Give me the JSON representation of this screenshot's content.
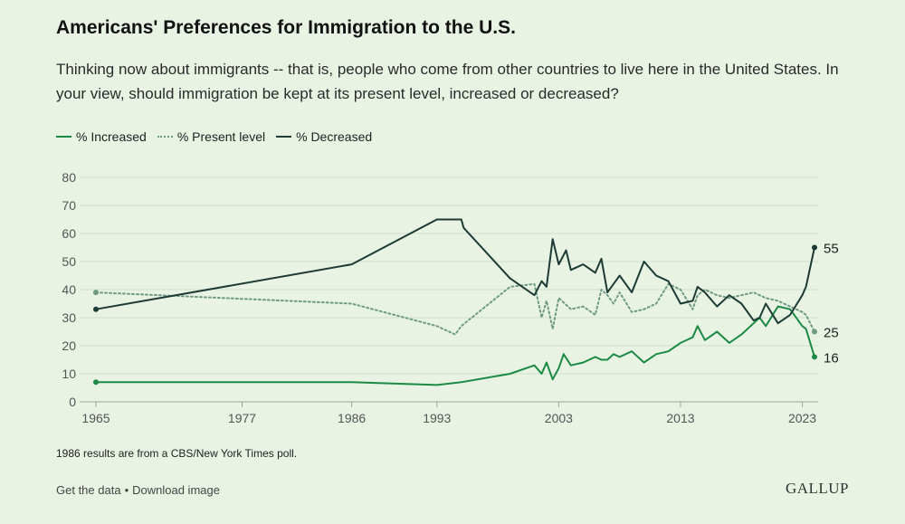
{
  "header": {
    "title": "Americans' Preferences for Immigration to the U.S.",
    "subtitle": "Thinking now about immigrants -- that is, people who come from other countries to live here in the United States. In your view, should immigration be kept at its present level, increased or decreased?"
  },
  "legend": {
    "increased": "% Increased",
    "present": "% Present level",
    "decreased": "% Decreased"
  },
  "footer": {
    "note": "1986 results are from a CBS/New York Times poll.",
    "get_data": "Get the data",
    "separator": "•",
    "download": "Download image",
    "brand": "GALLUP"
  },
  "colors": {
    "background": "#e8f3e4",
    "increased": "#1a8a45",
    "present": "#6f9a85",
    "decreased": "#1e3a34",
    "grid": "#cfdccb"
  },
  "chart_data": {
    "type": "line",
    "title": "Americans' Preferences for Immigration to the U.S.",
    "xlabel": "",
    "ylabel": "",
    "xlim": [
      1965,
      2024
    ],
    "ylim": [
      0,
      80
    ],
    "x_ticks": [
      1965,
      1977,
      1986,
      1993,
      2003,
      2013,
      2023
    ],
    "y_ticks": [
      0,
      10,
      20,
      30,
      40,
      50,
      60,
      70,
      80
    ],
    "grid": true,
    "legend_position": "top-left",
    "series": [
      {
        "name": "% Increased",
        "key": "increased",
        "style": "solid",
        "end_label": "16",
        "x": [
          1965,
          1977,
          1986,
          1993,
          1995,
          1999,
          2001,
          2001.6,
          2002,
          2002.5,
          2003,
          2003.4,
          2004,
          2005,
          2006,
          2006.5,
          2007,
          2007.5,
          2008,
          2009,
          2010,
          2011,
          2012,
          2013,
          2014,
          2014.4,
          2015,
          2016,
          2017,
          2018,
          2019,
          2019.5,
          2020,
          2021,
          2022,
          2023,
          2023.3,
          2024
        ],
        "values": [
          7,
          7,
          7,
          6,
          7,
          10,
          13,
          10,
          14,
          8,
          12,
          17,
          13,
          14,
          16,
          15,
          15,
          17,
          16,
          18,
          14,
          17,
          18,
          21,
          23,
          27,
          22,
          25,
          21,
          24,
          28,
          30,
          27,
          34,
          33,
          27,
          26,
          16
        ]
      },
      {
        "name": "% Present level",
        "key": "present",
        "style": "dotted",
        "end_label": "25",
        "x": [
          1965,
          1986,
          1993,
          1994.5,
          1995,
          1999,
          2001,
          2001.6,
          2002,
          2002.5,
          2003,
          2003.5,
          2004,
          2005,
          2006,
          2006.5,
          2007,
          2007.5,
          2008,
          2009,
          2010,
          2011,
          2012,
          2013,
          2014,
          2014.4,
          2015,
          2016,
          2017,
          2018,
          2019,
          2020,
          2021,
          2022,
          2023,
          2023.3,
          2024
        ],
        "values": [
          39,
          35,
          27,
          24,
          27,
          41,
          42,
          30,
          36,
          26,
          37,
          35,
          33,
          34,
          31,
          40,
          38,
          35,
          39,
          32,
          33,
          35,
          42,
          40,
          33,
          38,
          40,
          38,
          37,
          38,
          39,
          37,
          36,
          34,
          32,
          31,
          25
        ]
      },
      {
        "name": "% Decreased",
        "key": "decreased",
        "style": "solid",
        "end_label": "55",
        "x": [
          1965,
          1986,
          1993,
          1995,
          1995.2,
          1999,
          2001,
          2001.6,
          2002,
          2002.5,
          2003,
          2003.6,
          2004,
          2005,
          2006,
          2006.5,
          2007,
          2007.5,
          2008,
          2009,
          2010,
          2011,
          2012,
          2013,
          2014,
          2014.4,
          2015,
          2016,
          2017,
          2018,
          2019,
          2019.5,
          2020,
          2021,
          2022,
          2023,
          2023.3,
          2024
        ],
        "values": [
          33,
          49,
          65,
          65,
          62,
          44,
          38,
          43,
          41,
          58,
          49,
          54,
          47,
          49,
          46,
          51,
          39,
          42,
          45,
          39,
          50,
          45,
          43,
          35,
          36,
          41,
          39,
          34,
          38,
          35,
          29,
          30,
          35,
          28,
          31,
          38,
          41,
          55
        ]
      }
    ]
  }
}
